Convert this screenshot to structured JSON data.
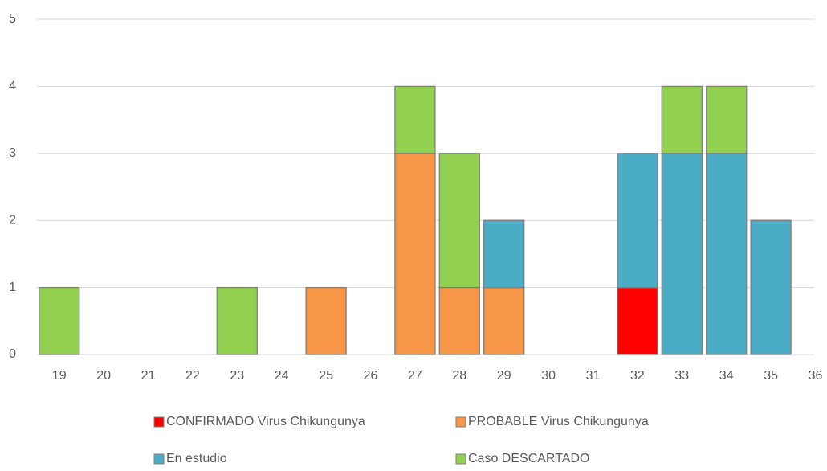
{
  "chart_data": {
    "type": "stacked_bar",
    "categories": [
      "19",
      "20",
      "21",
      "22",
      "23",
      "24",
      "25",
      "26",
      "27",
      "28",
      "29",
      "30",
      "31",
      "32",
      "33",
      "34",
      "35",
      "36"
    ],
    "series": [
      {
        "name": "CONFIRMADO Virus Chikungunya",
        "color": "#ff0000",
        "values": [
          0,
          0,
          0,
          0,
          0,
          0,
          0,
          0,
          0,
          0,
          0,
          0,
          0,
          1,
          0,
          0,
          0,
          0
        ]
      },
      {
        "name": "PROBABLE Virus Chikungunya",
        "color": "#f79646",
        "values": [
          0,
          0,
          0,
          0,
          0,
          0,
          1,
          0,
          3,
          1,
          1,
          0,
          0,
          0,
          0,
          0,
          0,
          0
        ]
      },
      {
        "name": "En estudio",
        "color": "#4bacc6",
        "values": [
          0,
          0,
          0,
          0,
          0,
          0,
          0,
          0,
          0,
          0,
          1,
          0,
          0,
          2,
          3,
          3,
          2,
          0
        ]
      },
      {
        "name": "Caso DESCARTADO",
        "color": "#92d050",
        "values": [
          1,
          0,
          0,
          0,
          1,
          0,
          0,
          0,
          1,
          2,
          0,
          0,
          0,
          0,
          1,
          1,
          0,
          0
        ]
      }
    ],
    "ylim": [
      0,
      5
    ],
    "yticks": [
      0,
      1,
      2,
      3,
      4,
      5
    ],
    "grid": true
  }
}
